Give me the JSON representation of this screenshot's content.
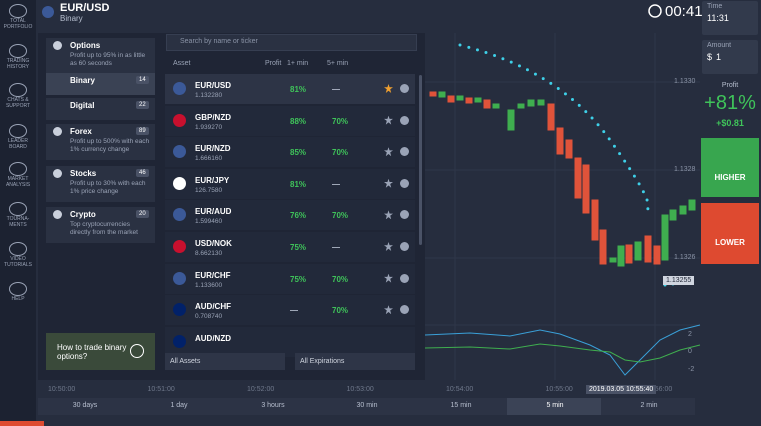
{
  "sidebar": [
    "TOTAL PORTFOLIO",
    "TRADING HISTORY",
    "CHATS & SUPPORT",
    "LEADER BOARD",
    "MARKET ANALYSIS",
    "TOURNA-MENTS",
    "VIDEO TUTORIALS",
    "HELP"
  ],
  "header": {
    "asset": "EUR/USD",
    "mode": "Binary",
    "timer": "00:41"
  },
  "trade_panel": {
    "time_label": "Time",
    "time": "11:31",
    "amount_label": "Amount",
    "currency": "$",
    "amount": "1",
    "profit_label": "Profit",
    "profit_percent": "+81%",
    "profit_amount": "+$0.81",
    "higher": "HIGHER",
    "lower": "LOWER"
  },
  "menu": {
    "categories": [
      {
        "name": "Options",
        "desc": "Profit up to 95% in as little as 60 seconds"
      },
      {
        "name": "Binary",
        "count": 14
      },
      {
        "name": "Digital",
        "count": 22
      },
      {
        "name": "Forex",
        "count": 89,
        "desc": "Profit up to 500% with each 1% currency change"
      },
      {
        "name": "Stocks",
        "count": 46,
        "desc": "Profit up to 30% with each 1% price change"
      },
      {
        "name": "Crypto",
        "count": 20,
        "desc": "Top cryptocurrencies directly from the market"
      }
    ],
    "video": "How to trade binary options?"
  },
  "asset_list": {
    "search": "Search by name or ticker",
    "columns": [
      "Asset",
      "Profit",
      "1+ min",
      "5+ min"
    ],
    "rows": [
      {
        "name": "EUR/USD",
        "price": "1.132280",
        "p1": "81%",
        "p5": "—"
      },
      {
        "name": "GBP/NZD",
        "price": "1.939270",
        "p1": "88%",
        "p5": "70%"
      },
      {
        "name": "EUR/NZD",
        "price": "1.666160",
        "p1": "85%",
        "p5": "70%"
      },
      {
        "name": "EUR/JPY",
        "price": "126.7580",
        "p1": "81%",
        "p5": "—"
      },
      {
        "name": "EUR/AUD",
        "price": "1.599460",
        "p1": "76%",
        "p5": "70%"
      },
      {
        "name": "USD/NOK",
        "price": "8.662130",
        "p1": "75%",
        "p5": "—"
      },
      {
        "name": "EUR/CHF",
        "price": "1.133600",
        "p1": "75%",
        "p5": "70%"
      },
      {
        "name": "AUD/CHF",
        "price": "0.708740",
        "p1": "—",
        "p5": "70%"
      },
      {
        "name": "AUD/NZD"
      }
    ],
    "filters": [
      "All Assets",
      "All Expirations"
    ]
  },
  "chart": {
    "price_labels": [
      "1.1330",
      "1.1328",
      "1.1326"
    ],
    "current_price": "1.13255",
    "time_labels": [
      "10:50:00",
      "10:51:00",
      "10:52:00",
      "10:53:00",
      "10:54:00",
      "10:55:00",
      "10:56:00"
    ],
    "cursor_time": "2019.03.05 10:55:40",
    "indicator_labels": [
      "2",
      "0",
      "-2"
    ]
  },
  "timeframes": [
    "30 days",
    "1 day",
    "3 hours",
    "30 min",
    "15 min",
    "5 min",
    "2 min"
  ]
}
